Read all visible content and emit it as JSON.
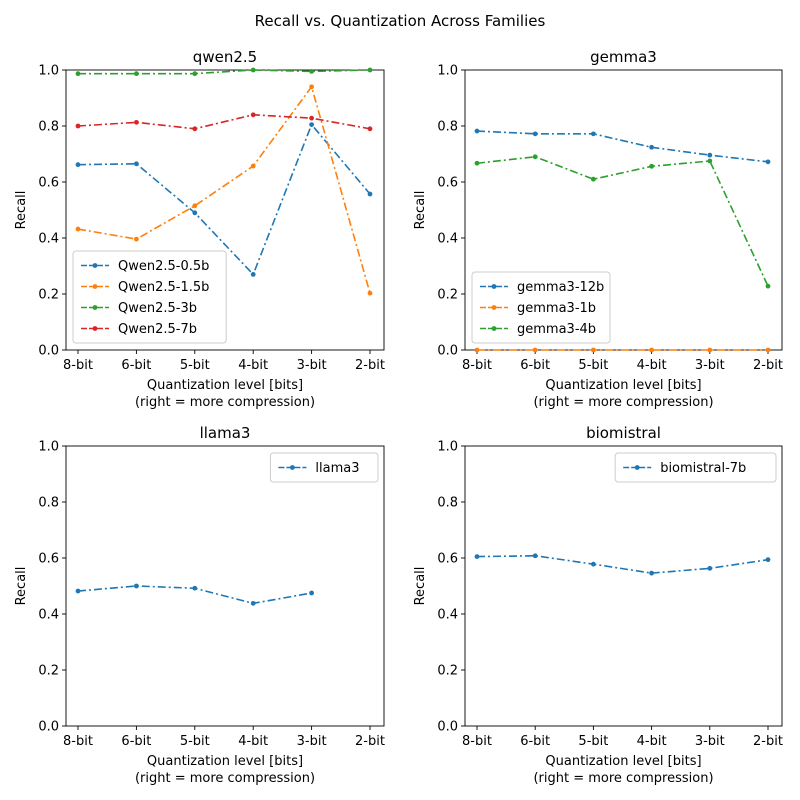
{
  "figure": {
    "title": "Recall vs. Quantization Across Families"
  },
  "chart_data": [
    {
      "type": "line",
      "title": "qwen2.5",
      "xlabel": "Quantization level [bits]",
      "xlabel2": "(right = more compression)",
      "ylabel": "Recall",
      "ylim": [
        0.0,
        1.0
      ],
      "yticks": [
        "0.0",
        "0.2",
        "0.4",
        "0.6",
        "0.8",
        "1.0"
      ],
      "categories": [
        "8-bit",
        "6-bit",
        "5-bit",
        "4-bit",
        "3-bit",
        "2-bit"
      ],
      "legend_position": "lower-left",
      "series": [
        {
          "name": "Qwen2.5-0.5b",
          "color": "#1f77b4",
          "values": [
            0.662,
            0.665,
            0.49,
            0.27,
            0.805,
            0.557
          ]
        },
        {
          "name": "Qwen2.5-1.5b",
          "color": "#ff7f0e",
          "values": [
            0.432,
            0.396,
            0.515,
            0.657,
            0.94,
            0.203
          ]
        },
        {
          "name": "Qwen2.5-3b",
          "color": "#2ca02c",
          "values": [
            0.987,
            0.987,
            0.987,
            1.0,
            0.995,
            1.0
          ]
        },
        {
          "name": "Qwen2.5-7b",
          "color": "#d62728",
          "values": [
            0.8,
            0.813,
            0.79,
            0.84,
            0.828,
            0.79
          ]
        }
      ]
    },
    {
      "type": "line",
      "title": "gemma3",
      "xlabel": "Quantization level [bits]",
      "xlabel2": "(right = more compression)",
      "ylabel": "Recall",
      "ylim": [
        0.0,
        1.0
      ],
      "yticks": [
        "0.0",
        "0.2",
        "0.4",
        "0.6",
        "0.8",
        "1.0"
      ],
      "categories": [
        "8-bit",
        "6-bit",
        "5-bit",
        "4-bit",
        "3-bit",
        "2-bit"
      ],
      "legend_position": "lower-left",
      "series": [
        {
          "name": "gemma3-12b",
          "color": "#1f77b4",
          "values": [
            0.782,
            0.772,
            0.772,
            0.724,
            0.696,
            0.672
          ]
        },
        {
          "name": "gemma3-1b",
          "color": "#ff7f0e",
          "values": [
            0.0,
            0.0,
            0.0,
            0.0,
            0.0,
            0.0
          ]
        },
        {
          "name": "gemma3-4b",
          "color": "#2ca02c",
          "values": [
            0.667,
            0.69,
            0.61,
            0.656,
            0.675,
            0.228
          ]
        }
      ]
    },
    {
      "type": "line",
      "title": "llama3",
      "xlabel": "Quantization level [bits]",
      "xlabel2": "(right = more compression)",
      "ylabel": "Recall",
      "ylim": [
        0.0,
        1.0
      ],
      "yticks": [
        "0.0",
        "0.2",
        "0.4",
        "0.6",
        "0.8",
        "1.0"
      ],
      "categories": [
        "8-bit",
        "6-bit",
        "5-bit",
        "4-bit",
        "3-bit",
        "2-bit"
      ],
      "legend_position": "upper-right",
      "series": [
        {
          "name": "llama3",
          "color": "#1f77b4",
          "values": [
            0.482,
            0.5,
            0.492,
            0.438,
            0.475,
            null
          ]
        }
      ]
    },
    {
      "type": "line",
      "title": "biomistral",
      "xlabel": "Quantization level [bits]",
      "xlabel2": "(right = more compression)",
      "ylabel": "Recall",
      "ylim": [
        0.0,
        1.0
      ],
      "yticks": [
        "0.0",
        "0.2",
        "0.4",
        "0.6",
        "0.8",
        "1.0"
      ],
      "categories": [
        "8-bit",
        "6-bit",
        "5-bit",
        "4-bit",
        "3-bit",
        "2-bit"
      ],
      "legend_position": "upper-right",
      "series": [
        {
          "name": "biomistral-7b",
          "color": "#1f77b4",
          "values": [
            0.605,
            0.608,
            0.578,
            0.546,
            0.563,
            0.594
          ]
        }
      ]
    }
  ]
}
